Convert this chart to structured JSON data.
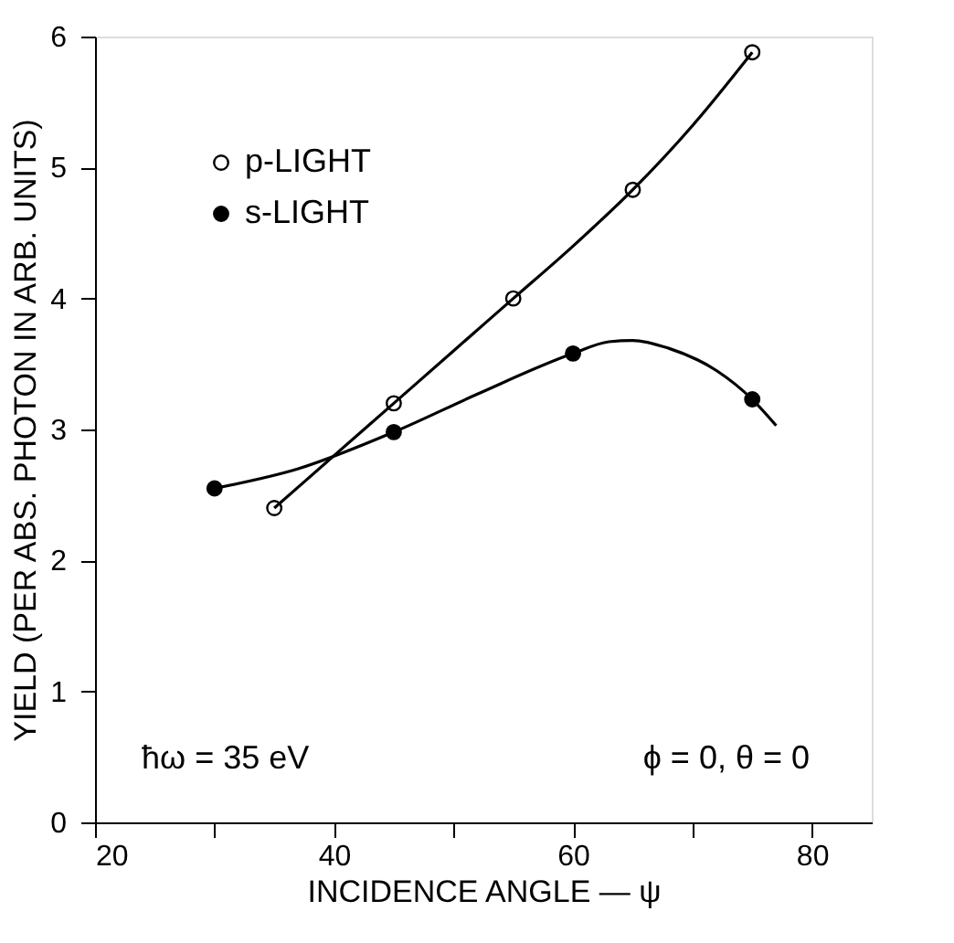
{
  "chart_data": {
    "type": "scatter",
    "xlabel": "INCIDENCE ANGLE — ψ",
    "ylabel": "YIELD (PER ABS. PHOTON IN ARB. UNITS)",
    "series": [
      {
        "name": "p-LIGHT",
        "color": "#000000",
        "x": [
          35,
          45,
          55,
          65,
          75
        ],
        "values": [
          2.4,
          3.2,
          4.0,
          4.83,
          5.88
        ]
      },
      {
        "name": "s-LIGHT",
        "color": "#000000",
        "x": [
          30,
          45,
          60,
          75
        ],
        "values": [
          2.55,
          2.98,
          3.58,
          3.23
        ]
      },
      {
        "type": "line",
        "marker": "none",
        "line_style": "solid",
        "color": "#000000",
        "x": [
          35,
          40,
          45,
          50,
          55,
          60,
          65,
          70,
          75
        ],
        "values": [
          2.4,
          2.8,
          3.2,
          3.6,
          4.0,
          4.4,
          4.83,
          5.32,
          5.88
        ]
      },
      {
        "type": "line",
        "marker": "none",
        "line_style": "solid",
        "color": "#000000",
        "x": [
          30,
          37,
          45,
          52,
          60,
          63,
          65,
          68,
          72,
          75,
          77
        ],
        "values": [
          2.55,
          2.7,
          2.98,
          3.27,
          3.58,
          3.67,
          3.68,
          3.62,
          3.45,
          3.23,
          3.03
        ]
      }
    ],
    "xlim": [
      20,
      85
    ],
    "xticks": [
      20,
      {
        "value": 30,
        "label": null
      },
      40,
      {
        "value": 50,
        "label": null
      },
      60,
      {
        "value": 70,
        "label": null
      },
      80
    ],
    "ylim": [
      0,
      6
    ],
    "yticks": [
      0,
      1,
      2,
      3,
      4,
      5,
      6
    ],
    "annotations": [
      "ħω = 35 eV",
      "ϕ = 0,  θ = 0"
    ],
    "legend": "top left",
    "marker": "circle",
    "grid": false
  }
}
